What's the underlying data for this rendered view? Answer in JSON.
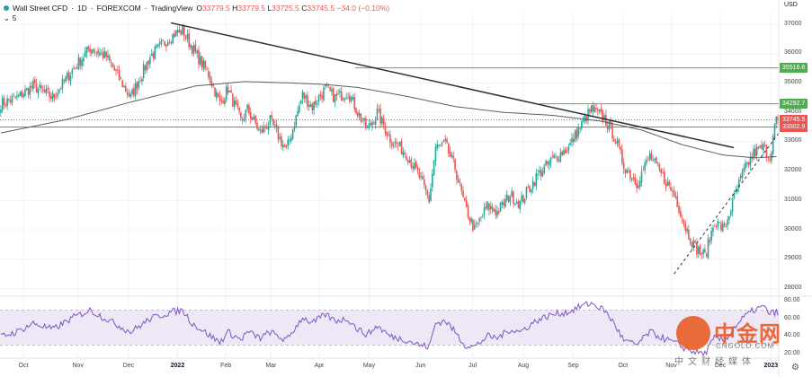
{
  "header": {
    "symbol": "Wall Street CFD",
    "interval": "1D",
    "broker": "FOREXCOM",
    "platform": "TradingView",
    "separator": "·",
    "o_label": "O",
    "o_value": "33779.5",
    "h_label": "H",
    "h_value": "33779.5",
    "l_label": "L",
    "l_value": "33725.5",
    "c_label": "C",
    "c_value": "33745.5",
    "change": "−34.0 (−0.10%)",
    "collapse_count": "5",
    "currency": "USD"
  },
  "colors": {
    "up": "#26a69a",
    "down": "#ef5350",
    "trendline": "#2a2e39",
    "ma": "#5d5d5d",
    "resistance_green": "#4caf50",
    "support_red": "#ef5350",
    "current_price": "#ef5350",
    "rsi": "#7e57c2",
    "rsi_band": "#ede7f6"
  },
  "chart_data": [
    {
      "type": "candlestick",
      "title": "Wall Street CFD · 1D · FOREXCOM",
      "currency": "USD",
      "ylim": [
        27800,
        37400
      ],
      "y_ticks": [
        28000,
        29000,
        30000,
        31000,
        32000,
        33000,
        34000,
        35000,
        36000,
        37000
      ],
      "x_ticks": [
        "Oct",
        "Nov",
        "Dec",
        "2022",
        "Feb",
        "Mar",
        "Apr",
        "May",
        "Jun",
        "Jul",
        "Aug",
        "Sep",
        "Oct",
        "Nov",
        "Dec",
        "2023"
      ],
      "x_tick_bold": [
        "2022",
        "2023"
      ],
      "close_path": [
        [
          0,
          34300
        ],
        [
          10,
          34500
        ],
        [
          20,
          34900
        ],
        [
          32,
          34500
        ],
        [
          45,
          35500
        ],
        [
          55,
          36200
        ],
        [
          65,
          35900
        ],
        [
          80,
          34500
        ],
        [
          92,
          35900
        ],
        [
          105,
          36600
        ],
        [
          112,
          36800
        ],
        [
          118,
          36200
        ],
        [
          128,
          35300
        ],
        [
          135,
          34300
        ],
        [
          140,
          34800
        ],
        [
          148,
          33700
        ],
        [
          152,
          34100
        ],
        [
          160,
          33300
        ],
        [
          166,
          33700
        ],
        [
          176,
          32700
        ],
        [
          186,
          34600
        ],
        [
          192,
          34200
        ],
        [
          200,
          34800
        ],
        [
          206,
          34500
        ],
        [
          214,
          34700
        ],
        [
          220,
          34000
        ],
        [
          226,
          33400
        ],
        [
          232,
          34000
        ],
        [
          240,
          33100
        ],
        [
          250,
          32600
        ],
        [
          258,
          31800
        ],
        [
          264,
          31000
        ],
        [
          268,
          32800
        ],
        [
          274,
          32900
        ],
        [
          280,
          32100
        ],
        [
          286,
          30800
        ],
        [
          292,
          30000
        ],
        [
          300,
          30800
        ],
        [
          306,
          30600
        ],
        [
          314,
          31200
        ],
        [
          320,
          30900
        ],
        [
          330,
          31800
        ],
        [
          340,
          32400
        ],
        [
          350,
          32800
        ],
        [
          358,
          33600
        ],
        [
          364,
          34100
        ],
        [
          372,
          33800
        ],
        [
          378,
          33200
        ],
        [
          384,
          32200
        ],
        [
          392,
          31600
        ],
        [
          400,
          32500
        ],
        [
          408,
          31800
        ],
        [
          416,
          31100
        ],
        [
          422,
          30100
        ],
        [
          428,
          29400
        ],
        [
          434,
          29100
        ],
        [
          440,
          30300
        ],
        [
          446,
          30000
        ],
        [
          452,
          31100
        ],
        [
          458,
          32000
        ],
        [
          464,
          32600
        ],
        [
          470,
          32800
        ],
        [
          474,
          32500
        ],
        [
          478,
          33800
        ],
        [
          479,
          33745.5
        ]
      ],
      "ma_path": [
        [
          0,
          33300
        ],
        [
          40,
          33750
        ],
        [
          80,
          34350
        ],
        [
          120,
          34900
        ],
        [
          150,
          35050
        ],
        [
          180,
          35000
        ],
        [
          200,
          34950
        ],
        [
          220,
          34850
        ],
        [
          250,
          34550
        ],
        [
          280,
          34200
        ],
        [
          310,
          34000
        ],
        [
          340,
          33900
        ],
        [
          370,
          33700
        ],
        [
          395,
          33400
        ],
        [
          420,
          32900
        ],
        [
          445,
          32550
        ],
        [
          465,
          32450
        ],
        [
          479,
          32500
        ]
      ],
      "trendlines": [
        {
          "name": "resistance-trendline",
          "points": [
            [
              110,
              37050
            ],
            [
              479,
              32800
            ]
          ],
          "style": "solid"
        },
        {
          "name": "support-trendline",
          "points": [
            [
              415,
              28500
            ],
            [
              479,
              33500
            ]
          ],
          "style": "dashed"
        }
      ],
      "levels": [
        {
          "name": "level-35516",
          "value": 35516.6,
          "label": "35516.6",
          "color": "#4caf50",
          "style": "solid"
        },
        {
          "name": "level-34292",
          "value": 34292.7,
          "label": "34292.7",
          "color": "#4caf50",
          "style": "solid"
        },
        {
          "name": "level-33745",
          "value": 33745.5,
          "label": "33745.5",
          "color": "#ef5350",
          "style": "dotted"
        },
        {
          "name": "level-33502",
          "value": 33502.9,
          "label": "33502.9",
          "color": "#ef5350",
          "style": "solid"
        }
      ]
    },
    {
      "type": "line",
      "title": "RSI",
      "ylim": [
        16,
        84
      ],
      "y_ticks": [
        80,
        60,
        40,
        20
      ],
      "upper_band": 70,
      "lower_band": 30,
      "series_path": [
        [
          0,
          40
        ],
        [
          10,
          45
        ],
        [
          20,
          55
        ],
        [
          32,
          48
        ],
        [
          45,
          62
        ],
        [
          55,
          70
        ],
        [
          65,
          60
        ],
        [
          80,
          45
        ],
        [
          92,
          60
        ],
        [
          105,
          68
        ],
        [
          112,
          70
        ],
        [
          118,
          55
        ],
        [
          128,
          42
        ],
        [
          135,
          33
        ],
        [
          140,
          45
        ],
        [
          148,
          36
        ],
        [
          152,
          45
        ],
        [
          160,
          38
        ],
        [
          166,
          45
        ],
        [
          176,
          35
        ],
        [
          186,
          62
        ],
        [
          192,
          55
        ],
        [
          200,
          65
        ],
        [
          206,
          58
        ],
        [
          214,
          60
        ],
        [
          220,
          48
        ],
        [
          226,
          42
        ],
        [
          232,
          52
        ],
        [
          240,
          40
        ],
        [
          250,
          36
        ],
        [
          258,
          30
        ],
        [
          264,
          28
        ],
        [
          268,
          55
        ],
        [
          274,
          58
        ],
        [
          280,
          45
        ],
        [
          286,
          30
        ],
        [
          292,
          28
        ],
        [
          300,
          40
        ],
        [
          306,
          38
        ],
        [
          314,
          48
        ],
        [
          320,
          45
        ],
        [
          330,
          58
        ],
        [
          340,
          65
        ],
        [
          350,
          68
        ],
        [
          358,
          75
        ],
        [
          364,
          78
        ],
        [
          372,
          70
        ],
        [
          378,
          55
        ],
        [
          384,
          35
        ],
        [
          392,
          30
        ],
        [
          400,
          45
        ],
        [
          408,
          38
        ],
        [
          416,
          32
        ],
        [
          422,
          26
        ],
        [
          428,
          22
        ],
        [
          434,
          20
        ],
        [
          440,
          38
        ],
        [
          446,
          35
        ],
        [
          452,
          50
        ],
        [
          458,
          62
        ],
        [
          464,
          70
        ],
        [
          470,
          74
        ],
        [
          474,
          66
        ],
        [
          478,
          68
        ],
        [
          479,
          66
        ]
      ]
    }
  ],
  "watermark": {
    "brand": "中金网",
    "url": "CNGOLD.COM",
    "tagline": "中文财经媒体",
    "partial_year": "2023"
  }
}
